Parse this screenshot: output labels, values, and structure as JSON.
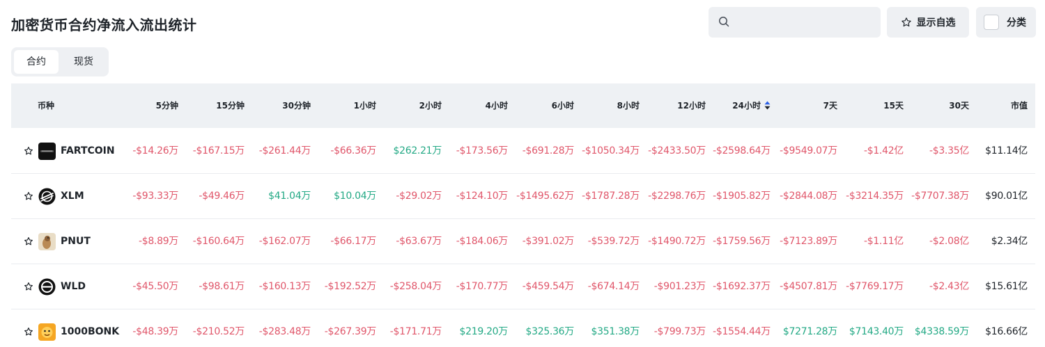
{
  "title": "加密货币合约净流入流出统计",
  "search": {
    "placeholder": "",
    "icon": "search-icon"
  },
  "toolbar": {
    "favorites_label": "显示自选",
    "category_label": "分类"
  },
  "tabs": [
    {
      "label": "合约",
      "active": true
    },
    {
      "label": "现货",
      "active": false
    }
  ],
  "colors": {
    "negative": "#e0566a",
    "positive": "#23a985",
    "sort_active": "#2a5fe6"
  },
  "table": {
    "columns": [
      "币种",
      "5分钟",
      "15分钟",
      "30分钟",
      "1小时",
      "2小时",
      "4小时",
      "6小时",
      "8小时",
      "12小时",
      "24小时",
      "7天",
      "15天",
      "30天",
      "市值"
    ],
    "sorted_column": "24小时",
    "rows": [
      {
        "name": "FARTCOIN",
        "logo": "fartcoin-logo",
        "values": [
          "-$14.26万",
          "-$167.15万",
          "-$261.44万",
          "-$66.36万",
          "$262.21万",
          "-$173.56万",
          "-$691.28万",
          "-$1050.34万",
          "-$2433.50万",
          "-$2598.64万",
          "-$9549.07万",
          "-$1.42亿",
          "-$3.35亿"
        ],
        "market_cap": "$11.14亿"
      },
      {
        "name": "XLM",
        "logo": "stellar-logo",
        "values": [
          "-$93.33万",
          "-$49.46万",
          "$41.04万",
          "$10.04万",
          "-$29.02万",
          "-$124.10万",
          "-$1495.62万",
          "-$1787.28万",
          "-$2298.76万",
          "-$1905.82万",
          "-$2844.08万",
          "-$3214.35万",
          "-$7707.38万"
        ],
        "market_cap": "$90.01亿"
      },
      {
        "name": "PNUT",
        "logo": "pnut-logo",
        "values": [
          "-$8.89万",
          "-$160.64万",
          "-$162.07万",
          "-$66.17万",
          "-$63.67万",
          "-$184.06万",
          "-$391.02万",
          "-$539.72万",
          "-$1490.72万",
          "-$1759.56万",
          "-$7123.89万",
          "-$1.11亿",
          "-$2.08亿"
        ],
        "market_cap": "$2.34亿"
      },
      {
        "name": "WLD",
        "logo": "worldcoin-logo",
        "values": [
          "-$45.50万",
          "-$98.61万",
          "-$160.13万",
          "-$192.52万",
          "-$258.04万",
          "-$170.77万",
          "-$459.54万",
          "-$674.14万",
          "-$901.23万",
          "-$1692.37万",
          "-$4507.81万",
          "-$7769.17万",
          "-$2.43亿"
        ],
        "market_cap": "$15.61亿"
      },
      {
        "name": "1000BONK",
        "logo": "bonk-logo",
        "values": [
          "-$48.39万",
          "-$210.52万",
          "-$283.48万",
          "-$267.39万",
          "-$171.71万",
          "$219.20万",
          "$325.36万",
          "$351.38万",
          "-$799.73万",
          "-$1554.44万",
          "$7271.28万",
          "$7143.40万",
          "$4338.59万"
        ],
        "market_cap": "$16.66亿"
      }
    ]
  }
}
